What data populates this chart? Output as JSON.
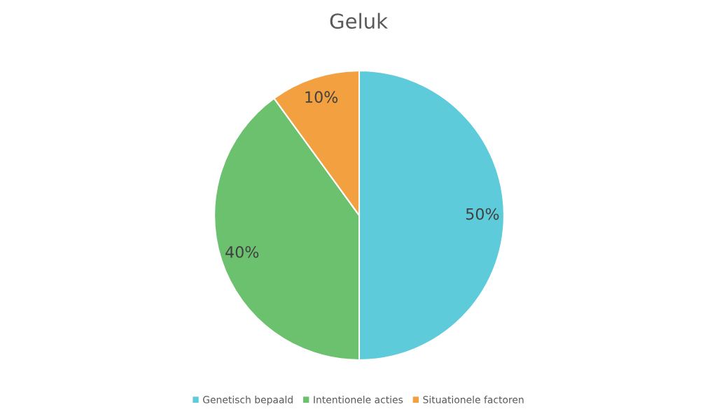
{
  "chart_data": {
    "type": "pie",
    "title": "Geluk",
    "categories": [
      "Genetisch bepaald",
      "Intentionele acties",
      "Situationele factoren"
    ],
    "values": [
      50,
      40,
      10
    ],
    "colors": [
      "#5ecbdb",
      "#6cc16e",
      "#f3a041"
    ],
    "value_labels": [
      "50%",
      "40%",
      "10%"
    ],
    "legend": "bottom"
  }
}
